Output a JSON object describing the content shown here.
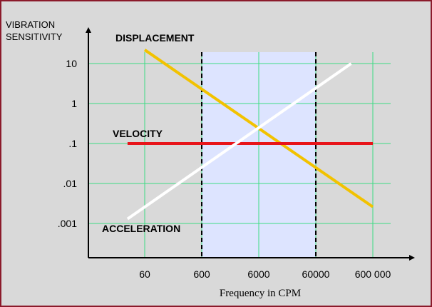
{
  "chart_data": {
    "type": "line",
    "ylabel_lines": [
      "VIBRATION",
      "SENSITIVITY"
    ],
    "xlabel": "Frequency in  CPM",
    "x_ticks": [
      "60",
      "600",
      "6000",
      "60000",
      "600 000"
    ],
    "y_ticks": [
      "10",
      "1",
      ".1",
      ".01",
      ".001"
    ],
    "x_scale": "log",
    "y_scale": "log",
    "x_values": [
      60,
      600,
      6000,
      60000,
      600000
    ],
    "y_values": [
      10,
      1,
      0.1,
      0.01,
      0.001
    ],
    "grid": true,
    "shaded_region": {
      "x_from": 600,
      "x_to": 60000
    },
    "dashed_verticals": [
      600,
      60000
    ],
    "series": [
      {
        "name": "DISPLACEMENT",
        "color": "#f2c200",
        "points": [
          [
            60,
            22
          ],
          [
            600000,
            0.0026
          ]
        ]
      },
      {
        "name": "VELOCITY",
        "color": "#e8141a",
        "points": [
          [
            30,
            0.1
          ],
          [
            600000,
            0.1
          ]
        ]
      },
      {
        "name": "ACCELERATION",
        "color": "#ffffff",
        "points": [
          [
            30,
            0.0013
          ],
          [
            250000,
            10
          ]
        ]
      }
    ],
    "colors": {
      "background": "#d9d9d9",
      "border": "#8b1a2b",
      "grid": "#3ddc84",
      "shaded": "#dde4ff",
      "axis": "#000000"
    }
  }
}
